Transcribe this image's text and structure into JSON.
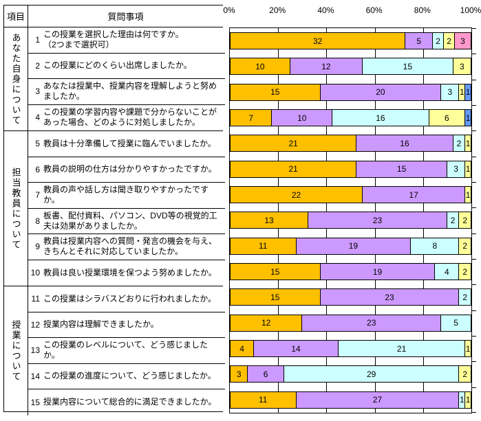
{
  "table": {
    "header": {
      "item": "項目",
      "question": "質問事項"
    },
    "groups": [
      {
        "label": "あなた自身について",
        "questions": [
          {
            "num": "1",
            "text": "この授業を選択した理由は何ですか。\n（2つまで選択可）"
          },
          {
            "num": "2",
            "text": "この授業にどのくらい出席しましたか。"
          },
          {
            "num": "3",
            "text": "あなたは授業中、授業内容を理解しようと努めましたか。"
          },
          {
            "num": "4",
            "text": "この授業の学習内容や課題で分からないことがあった場合、どのように対処しましたか。"
          }
        ]
      },
      {
        "label": "担当教員について",
        "questions": [
          {
            "num": "5",
            "text": "教員は十分準備して授業に臨んでいましたか。"
          },
          {
            "num": "6",
            "text": "教員の説明の仕方は分かりやすかったですか。"
          },
          {
            "num": "7",
            "text": "教員の声や話し方は聞き取りやすかったですか。"
          },
          {
            "num": "8",
            "text": "板書、配付資料、パソコン、DVD等の視覚的工夫は効果がありましたか。"
          },
          {
            "num": "9",
            "text": "教員は授業内容への質問・発言の機会を与え、きちんとそれに対応していましたか。"
          },
          {
            "num": "10",
            "text": "教員は良い授業環境を保つよう努めましたか。"
          }
        ]
      },
      {
        "label": "授業について",
        "questions": [
          {
            "num": "11",
            "text": "この授業はシラバスどおりに行われましたか。"
          },
          {
            "num": "12",
            "text": "授業内容は理解できましたか。"
          },
          {
            "num": "13",
            "text": "この授業のレベルについて、どう感じましたか。"
          },
          {
            "num": "14",
            "text": "この授業の進度について、どう感じましたか。"
          },
          {
            "num": "15",
            "text": "授業内容について総合的に満足できましたか。"
          }
        ]
      }
    ]
  },
  "chart_data": {
    "type": "bar",
    "stacked": true,
    "orientation": "horizontal",
    "normalized_to_100_percent": true,
    "x_axis_ticks": [
      "0%",
      "20%",
      "40%",
      "60%",
      "80%",
      "100%"
    ],
    "xlim": [
      0,
      100
    ],
    "grid": true,
    "colors": [
      "#FFC000",
      "#CC99FF",
      "#CCFFFF",
      "#FFFF99",
      "#6699FF",
      "#FF99CC"
    ],
    "color_names": [
      "gold",
      "light-purple",
      "light-cyan",
      "light-yellow",
      "blue",
      "pink"
    ],
    "categories": [
      "1",
      "2",
      "3",
      "4",
      "5",
      "6",
      "7",
      "8",
      "9",
      "10",
      "11",
      "12",
      "13",
      "14",
      "15"
    ],
    "rows": [
      {
        "category": "1",
        "segments": [
          {
            "v": 32,
            "s": 0
          },
          {
            "v": 5,
            "s": 1
          },
          {
            "v": 2,
            "s": 2
          },
          {
            "v": 2,
            "s": 3
          },
          {
            "v": 3,
            "s": 5
          }
        ]
      },
      {
        "category": "2",
        "segments": [
          {
            "v": 10,
            "s": 0
          },
          {
            "v": 12,
            "s": 1
          },
          {
            "v": 15,
            "s": 2
          },
          {
            "v": 3,
            "s": 3
          }
        ]
      },
      {
        "category": "3",
        "segments": [
          {
            "v": 15,
            "s": 0
          },
          {
            "v": 20,
            "s": 1
          },
          {
            "v": 3,
            "s": 2
          },
          {
            "v": 1,
            "s": 3
          },
          {
            "v": 1,
            "s": 4
          }
        ]
      },
      {
        "category": "4",
        "segments": [
          {
            "v": 7,
            "s": 0
          },
          {
            "v": 10,
            "s": 1
          },
          {
            "v": 16,
            "s": 2
          },
          {
            "v": 6,
            "s": 3
          },
          {
            "v": 1,
            "s": 4
          }
        ]
      },
      {
        "category": "5",
        "segments": [
          {
            "v": 21,
            "s": 0
          },
          {
            "v": 16,
            "s": 1
          },
          {
            "v": 2,
            "s": 2
          },
          {
            "v": 1,
            "s": 3
          }
        ]
      },
      {
        "category": "6",
        "segments": [
          {
            "v": 21,
            "s": 0
          },
          {
            "v": 15,
            "s": 1
          },
          {
            "v": 3,
            "s": 2
          },
          {
            "v": 1,
            "s": 3
          }
        ]
      },
      {
        "category": "7",
        "segments": [
          {
            "v": 22,
            "s": 0
          },
          {
            "v": 17,
            "s": 1
          },
          {
            "v": 1,
            "s": 3
          }
        ]
      },
      {
        "category": "8",
        "segments": [
          {
            "v": 13,
            "s": 0
          },
          {
            "v": 23,
            "s": 1
          },
          {
            "v": 2,
            "s": 2
          },
          {
            "v": 2,
            "s": 3
          }
        ]
      },
      {
        "category": "9",
        "segments": [
          {
            "v": 11,
            "s": 0
          },
          {
            "v": 19,
            "s": 1
          },
          {
            "v": 8,
            "s": 2
          },
          {
            "v": 2,
            "s": 3
          }
        ]
      },
      {
        "category": "10",
        "segments": [
          {
            "v": 15,
            "s": 0
          },
          {
            "v": 19,
            "s": 1
          },
          {
            "v": 4,
            "s": 2
          },
          {
            "v": 2,
            "s": 3
          }
        ]
      },
      {
        "category": "11",
        "segments": [
          {
            "v": 15,
            "s": 0
          },
          {
            "v": 23,
            "s": 1
          },
          {
            "v": 2,
            "s": 2
          }
        ]
      },
      {
        "category": "12",
        "segments": [
          {
            "v": 12,
            "s": 0
          },
          {
            "v": 23,
            "s": 1
          },
          {
            "v": 5,
            "s": 2
          }
        ]
      },
      {
        "category": "13",
        "segments": [
          {
            "v": 4,
            "s": 0
          },
          {
            "v": 14,
            "s": 1
          },
          {
            "v": 21,
            "s": 2
          },
          {
            "v": 1,
            "s": 3
          }
        ]
      },
      {
        "category": "14",
        "segments": [
          {
            "v": 3,
            "s": 0
          },
          {
            "v": 6,
            "s": 1
          },
          {
            "v": 29,
            "s": 2
          },
          {
            "v": 2,
            "s": 3
          }
        ]
      },
      {
        "category": "15",
        "segments": [
          {
            "v": 11,
            "s": 0
          },
          {
            "v": 27,
            "s": 1
          },
          {
            "v": 1,
            "s": 2
          },
          {
            "v": 1,
            "s": 3
          }
        ]
      }
    ]
  }
}
